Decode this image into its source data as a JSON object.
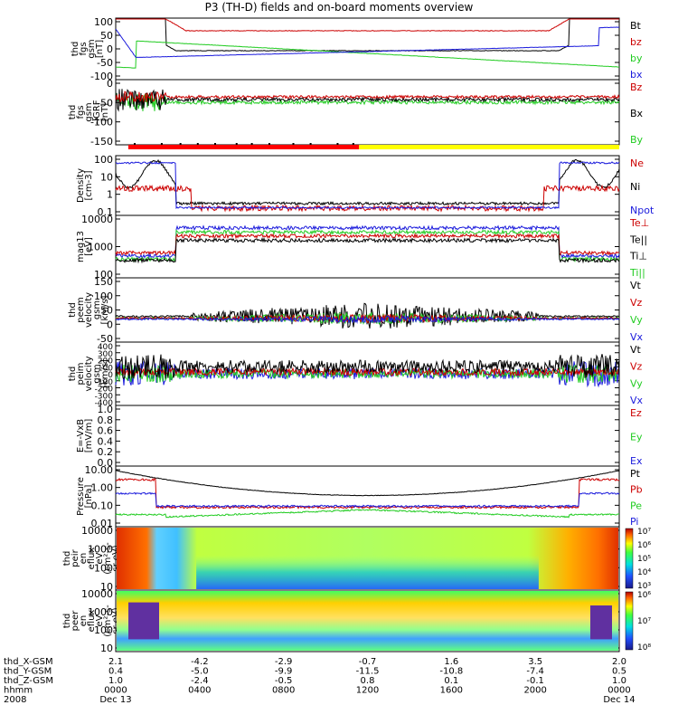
{
  "title": "P3 (TH-D) fields and on-board moments overview",
  "colors": {
    "black": "#000000",
    "red": "#cc0000",
    "green": "#22cc22",
    "blue": "#1a1adc",
    "yellow": "#ffff00",
    "bar_red": "#ff0000"
  },
  "chart_data": [
    {
      "id": "fgs",
      "type": "line",
      "ylabel": [
        "thd",
        "fgs",
        "gsm",
        "[nT]"
      ],
      "yticks": [
        "100",
        "50",
        "0",
        "-50",
        "-100"
      ],
      "ylim": [
        -100,
        100
      ],
      "series": [
        {
          "name": "Bt",
          "color": "black"
        },
        {
          "name": "bz",
          "color": "red"
        },
        {
          "name": "by",
          "color": "green"
        },
        {
          "name": "bx",
          "color": "blue"
        }
      ]
    },
    {
      "id": "fgs_dt",
      "type": "line",
      "ylabel": [
        "thd",
        "fgs",
        "gsm",
        "-IGRF",
        "[nT]"
      ],
      "yticks": [
        "0",
        "-50",
        "-100",
        "-150"
      ],
      "ylim": [
        -180,
        50
      ],
      "series": [
        {
          "name": "Bz",
          "color": "red"
        },
        {
          "name": "Bx",
          "color": "black"
        },
        {
          "name": "By",
          "color": "green"
        }
      ]
    },
    {
      "id": "mode_bar",
      "type": "bar",
      "segments": [
        {
          "color": "bar_red",
          "from_hour": 0.6,
          "to_hour": 11.6
        },
        {
          "color": "yellow",
          "from_hour": 11.6,
          "to_hour": 24
        }
      ]
    },
    {
      "id": "density",
      "type": "line",
      "ylabel": [
        "Density",
        "[cm-3]"
      ],
      "yticks": [
        "100",
        "10",
        "1",
        "0.1"
      ],
      "log": true,
      "ylim": [
        0.05,
        150
      ],
      "series": [
        {
          "name": "Ne",
          "color": "red"
        },
        {
          "name": "Ni",
          "color": "black"
        },
        {
          "name": "Npot",
          "color": "blue"
        }
      ]
    },
    {
      "id": "temp",
      "type": "line",
      "ylabel": [
        "mag13",
        "[eV]"
      ],
      "yticks": [
        "10000",
        "1000",
        "100"
      ],
      "log": true,
      "ylim": [
        40,
        20000
      ],
      "series": [
        {
          "name": "Te⊥",
          "color": "red"
        },
        {
          "name": "Te||",
          "color": "black"
        },
        {
          "name": "Ti⊥",
          "color": "black"
        },
        {
          "name": "Ti||",
          "color": "green"
        }
      ]
    },
    {
      "id": "vel_e",
      "type": "line",
      "ylabel": [
        "thd",
        "peem",
        "velocity",
        "gsm",
        "[km/s]"
      ],
      "yticks": [
        "150",
        "100",
        "50",
        "0",
        "-50"
      ],
      "ylim": [
        -75,
        175
      ],
      "series": [
        {
          "name": "Vt",
          "color": "black"
        },
        {
          "name": "Vz",
          "color": "red"
        },
        {
          "name": "Vy",
          "color": "green"
        },
        {
          "name": "Vx",
          "color": "blue"
        }
      ]
    },
    {
      "id": "vel_i",
      "type": "line",
      "ylabel": [
        "thd",
        "peim",
        "velocity",
        "gsm",
        "[km/s]"
      ],
      "yticks": [
        "400",
        "300",
        "200",
        "100",
        "0",
        "-100",
        "-200",
        "-300",
        "-400"
      ],
      "ylim": [
        -420,
        420
      ],
      "series": [
        {
          "name": "Vt",
          "color": "black"
        },
        {
          "name": "Vz",
          "color": "red"
        },
        {
          "name": "Vy",
          "color": "green"
        },
        {
          "name": "Vx",
          "color": "blue"
        }
      ]
    },
    {
      "id": "efield",
      "type": "line",
      "ylabel": [
        "E=-VxB",
        "[mV/m]"
      ],
      "yticks": [
        "1.0",
        "0.8",
        "0.6",
        "0.4",
        "0.2",
        "0.0"
      ],
      "ylim": [
        0,
        1
      ],
      "series": [
        {
          "name": "Ez",
          "color": "red"
        },
        {
          "name": "Ey",
          "color": "green"
        },
        {
          "name": "Ex",
          "color": "blue"
        }
      ]
    },
    {
      "id": "pressure",
      "type": "line",
      "ylabel": [
        "Pressure",
        "[nPa]"
      ],
      "yticks": [
        "10.00",
        "1.00",
        "0.10",
        "0.01"
      ],
      "log": true,
      "ylim": [
        0.008,
        20
      ],
      "series": [
        {
          "name": "Pt",
          "color": "black"
        },
        {
          "name": "Pb",
          "color": "red"
        },
        {
          "name": "Pe",
          "color": "green"
        },
        {
          "name": "Pi",
          "color": "blue"
        }
      ]
    },
    {
      "id": "ion_spec",
      "type": "heatmap",
      "ylabel": [
        "thd",
        "peir",
        "en",
        "eflux",
        "eV",
        "(cm²-s-",
        "sr-eV)"
      ],
      "yticks": [
        "10000",
        "1000",
        "100",
        "10"
      ],
      "colorbar": [
        "10⁷",
        "10⁶",
        "10⁵",
        "10⁴",
        "10³"
      ]
    },
    {
      "id": "ele_spec",
      "type": "heatmap",
      "ylabel": [
        "thd",
        "peer",
        "en",
        "eflux",
        "eV",
        "(cm²-s-",
        "sr-eV)"
      ],
      "yticks": [
        "10000",
        "1000",
        "100",
        "10"
      ],
      "colorbar": [
        "10⁶",
        "10⁷",
        "10⁸"
      ]
    }
  ],
  "footer": {
    "rows": [
      {
        "label": "thd_X-GSM",
        "values": [
          "2.1",
          "-4.2",
          "-2.9",
          "-0.7",
          "1.6",
          "3.5",
          "2.0"
        ]
      },
      {
        "label": "thd_Y-GSM",
        "values": [
          "0.4",
          "-5.0",
          "-9.9",
          "-11.5",
          "-10.8",
          "-7.4",
          "0.5"
        ]
      },
      {
        "label": "thd_Z-GSM",
        "values": [
          "1.0",
          "-2.4",
          "-0.5",
          "0.8",
          "0.1",
          "-0.1",
          "1.0"
        ]
      },
      {
        "label": "hhmm",
        "values": [
          "0000",
          "0400",
          "0800",
          "1200",
          "1600",
          "2000",
          "0000"
        ]
      },
      {
        "label": "2008",
        "values": [
          "Dec 13",
          "",
          "",
          "",
          "",
          "",
          "Dec 14"
        ]
      }
    ]
  }
}
